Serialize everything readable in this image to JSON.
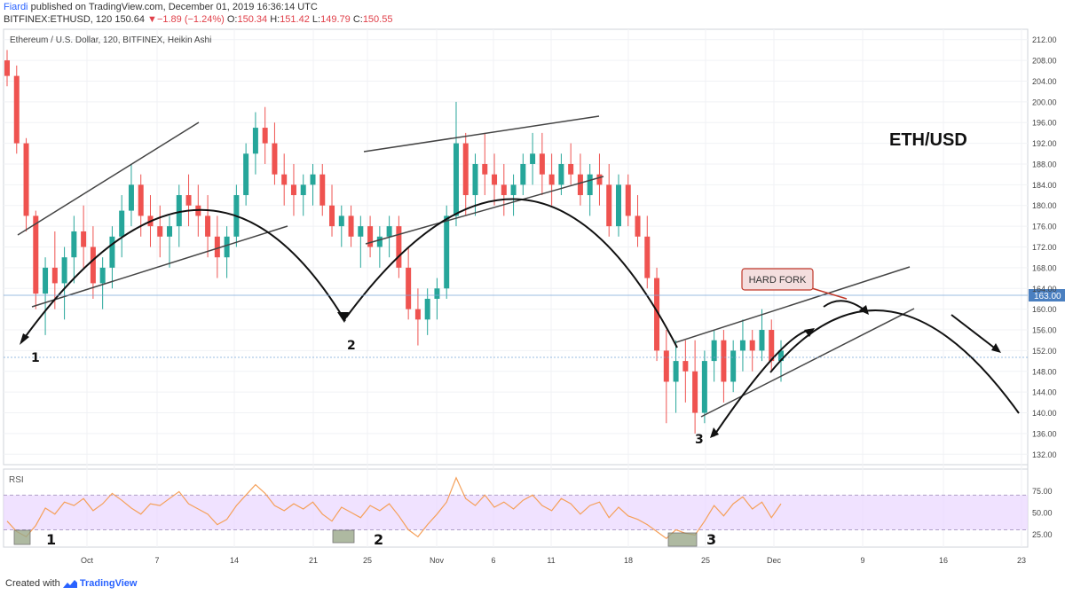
{
  "header": {
    "author": "Fiardi",
    "published_text": "published on TradingView.com, December 01, 2019 16:36:14 UTC",
    "symbol": "BITFINEX:ETHUSD, 120",
    "last": "150.64",
    "change_arrow": "▼",
    "change": "−1.89 (−1.24%)",
    "o_label": "O:",
    "o_value": "150.34",
    "h_label": "H:",
    "h_value": "151.42",
    "l_label": "L:",
    "l_value": "149.79",
    "c_label": "C:",
    "c_value": "150.55"
  },
  "footer": {
    "created_with": "Created with",
    "brand": "TradingView",
    "logo_icon": "tradingview-logo-icon"
  },
  "colors": {
    "up": "#26a69a",
    "down": "#ef5350",
    "rsi_line": "#f5a05a",
    "rsi_band": "#e9d6ff",
    "price_tag": "#4a7fc0"
  },
  "chart_data": {
    "type": "candlestick",
    "title": "Ethereum / U.S. Dollar, 120, BITFINEX, Heikin Ashi",
    "annotation_title": "ETH/USD",
    "callout": "HARD FORK",
    "current_price_label": "163.00",
    "y_ticks": [
      "212.00",
      "208.00",
      "204.00",
      "200.00",
      "196.00",
      "192.00",
      "188.00",
      "184.00",
      "180.00",
      "176.00",
      "172.00",
      "168.00",
      "164.00",
      "160.00",
      "156.00",
      "152.00",
      "148.00",
      "144.00",
      "140.00",
      "136.00",
      "132.00"
    ],
    "ylim": [
      130,
      214
    ],
    "x_ticks": [
      "Oct",
      "7",
      "14",
      "21",
      "25",
      "Nov",
      "6",
      "11",
      "18",
      "25",
      "Dec",
      "9",
      "16",
      "23"
    ],
    "wave_labels": [
      "1",
      "2",
      "3"
    ],
    "indicator": {
      "name": "RSI",
      "y_ticks": [
        "75.00",
        "50.00",
        "25.00"
      ],
      "band": [
        30,
        70
      ],
      "ylim": [
        10,
        100
      ]
    },
    "series": [
      {
        "name": "price",
        "values": [
          [
            208,
            210,
            203,
            205
          ],
          [
            205,
            207,
            190,
            192
          ],
          [
            192,
            193,
            175,
            178
          ],
          [
            178,
            179,
            160,
            163
          ],
          [
            163,
            170,
            155,
            168
          ],
          [
            168,
            175,
            160,
            165
          ],
          [
            165,
            172,
            158,
            170
          ],
          [
            170,
            178,
            165,
            175
          ],
          [
            175,
            180,
            168,
            172
          ],
          [
            172,
            176,
            162,
            165
          ],
          [
            165,
            170,
            160,
            168
          ],
          [
            168,
            176,
            164,
            174
          ],
          [
            174,
            182,
            170,
            179
          ],
          [
            179,
            188,
            176,
            184
          ],
          [
            184,
            186,
            174,
            178
          ],
          [
            178,
            182,
            172,
            176
          ],
          [
            176,
            180,
            170,
            174
          ],
          [
            174,
            178,
            168,
            176
          ],
          [
            176,
            184,
            172,
            182
          ],
          [
            182,
            186,
            176,
            180
          ],
          [
            180,
            184,
            174,
            178
          ],
          [
            178,
            182,
            170,
            174
          ],
          [
            174,
            178,
            166,
            170
          ],
          [
            170,
            176,
            166,
            174
          ],
          [
            174,
            184,
            172,
            182
          ],
          [
            182,
            192,
            180,
            190
          ],
          [
            190,
            198,
            186,
            195
          ],
          [
            195,
            199,
            188,
            192
          ],
          [
            192,
            196,
            184,
            186
          ],
          [
            186,
            190,
            180,
            184
          ],
          [
            184,
            188,
            178,
            182
          ],
          [
            182,
            186,
            178,
            184
          ],
          [
            184,
            188,
            180,
            186
          ],
          [
            186,
            188,
            178,
            180
          ],
          [
            180,
            184,
            174,
            176
          ],
          [
            176,
            180,
            172,
            178
          ],
          [
            178,
            180,
            172,
            174
          ],
          [
            174,
            178,
            168,
            176
          ],
          [
            176,
            178,
            170,
            172
          ],
          [
            172,
            176,
            168,
            174
          ],
          [
            174,
            178,
            170,
            176
          ],
          [
            176,
            178,
            166,
            168
          ],
          [
            168,
            172,
            158,
            160
          ],
          [
            160,
            164,
            153,
            158
          ],
          [
            158,
            164,
            155,
            162
          ],
          [
            162,
            166,
            158,
            164
          ],
          [
            164,
            180,
            162,
            178
          ],
          [
            178,
            200,
            176,
            192
          ],
          [
            192,
            194,
            178,
            182
          ],
          [
            182,
            190,
            178,
            188
          ],
          [
            188,
            194,
            182,
            186
          ],
          [
            186,
            190,
            180,
            184
          ],
          [
            184,
            188,
            178,
            182
          ],
          [
            182,
            186,
            178,
            184
          ],
          [
            184,
            190,
            182,
            188
          ],
          [
            188,
            194,
            184,
            190
          ],
          [
            190,
            194,
            182,
            186
          ],
          [
            186,
            190,
            180,
            184
          ],
          [
            184,
            190,
            182,
            188
          ],
          [
            188,
            192,
            184,
            186
          ],
          [
            186,
            190,
            180,
            182
          ],
          [
            182,
            188,
            178,
            186
          ],
          [
            186,
            190,
            180,
            184
          ],
          [
            184,
            188,
            174,
            176
          ],
          [
            176,
            186,
            174,
            184
          ],
          [
            184,
            186,
            176,
            178
          ],
          [
            178,
            182,
            172,
            174
          ],
          [
            174,
            178,
            164,
            166
          ],
          [
            166,
            168,
            150,
            152
          ],
          [
            152,
            156,
            138,
            146
          ],
          [
            146,
            154,
            140,
            150
          ],
          [
            150,
            154,
            142,
            148
          ],
          [
            148,
            154,
            136,
            140
          ],
          [
            140,
            152,
            138,
            150
          ],
          [
            150,
            156,
            146,
            154
          ],
          [
            154,
            156,
            142,
            146
          ],
          [
            146,
            154,
            144,
            152
          ],
          [
            152,
            158,
            148,
            154
          ],
          [
            154,
            156,
            148,
            152
          ],
          [
            152,
            160,
            150,
            156
          ],
          [
            156,
            158,
            148,
            150
          ],
          [
            150,
            154,
            146,
            152
          ]
        ]
      }
    ],
    "rsi_values": [
      40,
      28,
      22,
      35,
      55,
      48,
      62,
      58,
      66,
      52,
      60,
      72,
      64,
      55,
      48,
      60,
      58,
      66,
      74,
      60,
      54,
      48,
      36,
      42,
      58,
      70,
      82,
      72,
      58,
      52,
      60,
      54,
      62,
      48,
      40,
      56,
      50,
      44,
      58,
      52,
      60,
      46,
      30,
      22,
      36,
      48,
      62,
      90,
      66,
      58,
      70,
      56,
      62,
      54,
      64,
      70,
      58,
      52,
      66,
      60,
      48,
      58,
      62,
      44,
      56,
      46,
      42,
      36,
      28,
      20,
      30,
      26,
      24,
      40,
      58,
      46,
      60,
      68,
      54,
      62,
      44,
      60
    ]
  }
}
